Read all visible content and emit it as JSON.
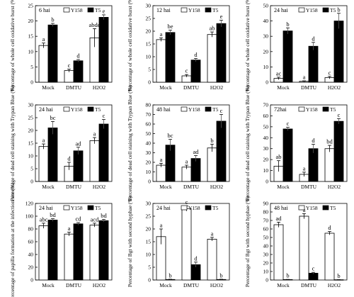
{
  "figure": {
    "title": ""
  },
  "legend_labels": [
    "Y158",
    "T5"
  ],
  "colors": {
    "y158": "#ffffff",
    "t5": "#000000",
    "axis": "#000000"
  },
  "chart_data": [
    {
      "type": "bar",
      "panel": "6 hai",
      "ylabel": "Percentage of whole cell oxidative burst (%)",
      "ylim": [
        0,
        25
      ],
      "yticks": [
        0,
        5,
        10,
        15,
        20,
        25
      ],
      "categories": [
        "Mock",
        "DMTU",
        "H2O2"
      ],
      "series": [
        {
          "name": "Y158",
          "values": [
            12.0,
            3.8,
            14.5
          ],
          "errors": [
            0.8,
            0.5,
            3.0
          ],
          "letters": [
            "a",
            "c",
            "abde"
          ]
        },
        {
          "name": "T5",
          "values": [
            18.7,
            7.0,
            21.2
          ],
          "errors": [
            0.5,
            0.4,
            0.8
          ],
          "letters": [
            "b",
            "d",
            "e"
          ]
        }
      ]
    },
    {
      "type": "bar",
      "panel": "12 hai",
      "ylabel": "Percentage of whole cell oxidative burst (%)",
      "ylim": [
        0,
        30
      ],
      "yticks": [
        0,
        5,
        10,
        15,
        20,
        25,
        30
      ],
      "categories": [
        "Mock",
        "DMTU",
        "H2O2"
      ],
      "series": [
        {
          "name": "Y158",
          "values": [
            16.7,
            2.5,
            18.7
          ],
          "errors": [
            0.7,
            0.5,
            1.0
          ],
          "letters": [
            "a",
            "c",
            "ab"
          ]
        },
        {
          "name": "T5",
          "values": [
            19.5,
            8.7,
            23.0
          ],
          "errors": [
            0.9,
            0.6,
            1.3
          ],
          "letters": [
            "be",
            "d",
            "e"
          ]
        }
      ]
    },
    {
      "type": "bar",
      "panel": "24 hai",
      "ylabel": "Percentage of whole cell oxidative burst (%)",
      "ylim": [
        0,
        50
      ],
      "yticks": [
        0,
        10,
        20,
        30,
        40,
        50
      ],
      "categories": [
        "Mock",
        "DMTU",
        "H2O2"
      ],
      "series": [
        {
          "name": "Y158",
          "values": [
            2.5,
            0.6,
            3.0
          ],
          "errors": [
            0.8,
            0.3,
            0.8
          ],
          "letters": [
            "ac",
            "a",
            "c"
          ]
        },
        {
          "name": "T5",
          "values": [
            33.5,
            23.5,
            40.0
          ],
          "errors": [
            2.0,
            2.5,
            5.0
          ],
          "letters": [
            "b",
            "d",
            "b"
          ]
        }
      ]
    },
    {
      "type": "bar",
      "panel": "24 hai",
      "ylabel": "Percentage of dead cell staining with Trypan Blue (%)",
      "ylim": [
        0,
        30
      ],
      "yticks": [
        0,
        5,
        10,
        15,
        20,
        25,
        30
      ],
      "categories": [
        "Mock",
        "DMTU",
        "H2O2"
      ],
      "series": [
        {
          "name": "Y158",
          "values": [
            13.7,
            6.0,
            16.0
          ],
          "errors": [
            1.0,
            1.5,
            1.2
          ],
          "letters": [
            "a",
            "d",
            "a"
          ]
        },
        {
          "name": "T5",
          "values": [
            21.0,
            12.0,
            22.5
          ],
          "errors": [
            2.5,
            1.4,
            1.8
          ],
          "letters": [
            "bc",
            "ad",
            "c"
          ]
        }
      ]
    },
    {
      "type": "bar",
      "panel": "48 hai",
      "ylabel": "Percentage of dead cell staining with Trypan Blue (%)",
      "ylim": [
        0,
        80
      ],
      "yticks": [
        0,
        10,
        20,
        30,
        40,
        50,
        60,
        70,
        80
      ],
      "categories": [
        "Mock",
        "DMTU",
        "H2O2"
      ],
      "series": [
        {
          "name": "Y158",
          "values": [
            17.0,
            15.0,
            35.0
          ],
          "errors": [
            2.0,
            2.0,
            4.0
          ],
          "letters": [
            "a",
            "a",
            "b"
          ]
        },
        {
          "name": "T5",
          "values": [
            38.0,
            24.0,
            63.0
          ],
          "errors": [
            6.0,
            3.0,
            7.0
          ],
          "letters": [
            "bc",
            "ad",
            "c"
          ]
        }
      ]
    },
    {
      "type": "bar",
      "panel": "72hai",
      "ylabel": "Percentage of dead cell staining with Trypan Blue (%)",
      "ylim": [
        0,
        70
      ],
      "yticks": [
        0,
        10,
        20,
        30,
        40,
        50,
        60,
        70
      ],
      "categories": [
        "Mock",
        "DMTU",
        "H2O2"
      ],
      "series": [
        {
          "name": "Y158",
          "values": [
            14.0,
            6.5,
            30.0
          ],
          "errors": [
            5.0,
            2.0,
            3.0
          ],
          "letters": [
            "ab",
            "a",
            "bd"
          ]
        },
        {
          "name": "T5",
          "values": [
            48.0,
            30.0,
            55.0
          ],
          "errors": [
            1.5,
            4.0,
            2.5
          ],
          "letters": [
            "c",
            "d",
            "c"
          ]
        }
      ]
    },
    {
      "type": "bar",
      "panel": "24 hai",
      "ylabel": "Percentage of papilla formation at the infection site (%)",
      "ylim": [
        0,
        120
      ],
      "yticks": [
        0,
        20,
        40,
        60,
        80,
        100,
        120
      ],
      "categories": [
        "Mock",
        "DMTU",
        "H2O2"
      ],
      "series": [
        {
          "name": "Y158",
          "values": [
            85.0,
            72.0,
            86.0
          ],
          "errors": [
            4.0,
            3.0,
            3.0
          ],
          "letters": [
            "abc",
            "a",
            "acd"
          ]
        },
        {
          "name": "T5",
          "values": [
            94.0,
            88.0,
            93.0
          ],
          "errors": [
            2.0,
            2.0,
            2.0
          ],
          "letters": [
            "bd",
            "cd",
            "bd"
          ]
        }
      ]
    },
    {
      "type": "bar",
      "panel": "24 hai",
      "ylabel": "Percentage of Bgt with second hyphae (%)",
      "ylim": [
        0,
        30
      ],
      "yticks": [
        0,
        5,
        10,
        15,
        20,
        25,
        30
      ],
      "categories": [
        "Mock",
        "DMTU",
        "H2O2"
      ],
      "series": [
        {
          "name": "Y158",
          "values": [
            17.0,
            28.0,
            16.0
          ],
          "errors": [
            3.0,
            1.0,
            0.7
          ],
          "letters": [
            "a",
            "c",
            "a"
          ]
        },
        {
          "name": "T5",
          "values": [
            0.2,
            6.0,
            0.2
          ],
          "errors": [
            0.1,
            1.0,
            0.1
          ],
          "letters": [
            "b",
            "d",
            "b"
          ]
        }
      ]
    },
    {
      "type": "bar",
      "panel": "48 hai",
      "ylabel": "Percentage of Bgt with second hyphae (%)",
      "ylim": [
        0,
        90
      ],
      "yticks": [
        0,
        10,
        20,
        30,
        40,
        50,
        60,
        70,
        80,
        90
      ],
      "categories": [
        "Mock",
        "DMTU",
        "H2O2"
      ],
      "series": [
        {
          "name": "Y158",
          "values": [
            65.0,
            75.0,
            55.0
          ],
          "errors": [
            3.0,
            3.0,
            2.0
          ],
          "letters": [
            "ad",
            "a",
            "d"
          ]
        },
        {
          "name": "T5",
          "values": [
            0.5,
            8.0,
            0.3
          ],
          "errors": [
            0.2,
            1.0,
            0.1
          ],
          "letters": [
            "b",
            "c",
            "b"
          ]
        }
      ]
    }
  ]
}
